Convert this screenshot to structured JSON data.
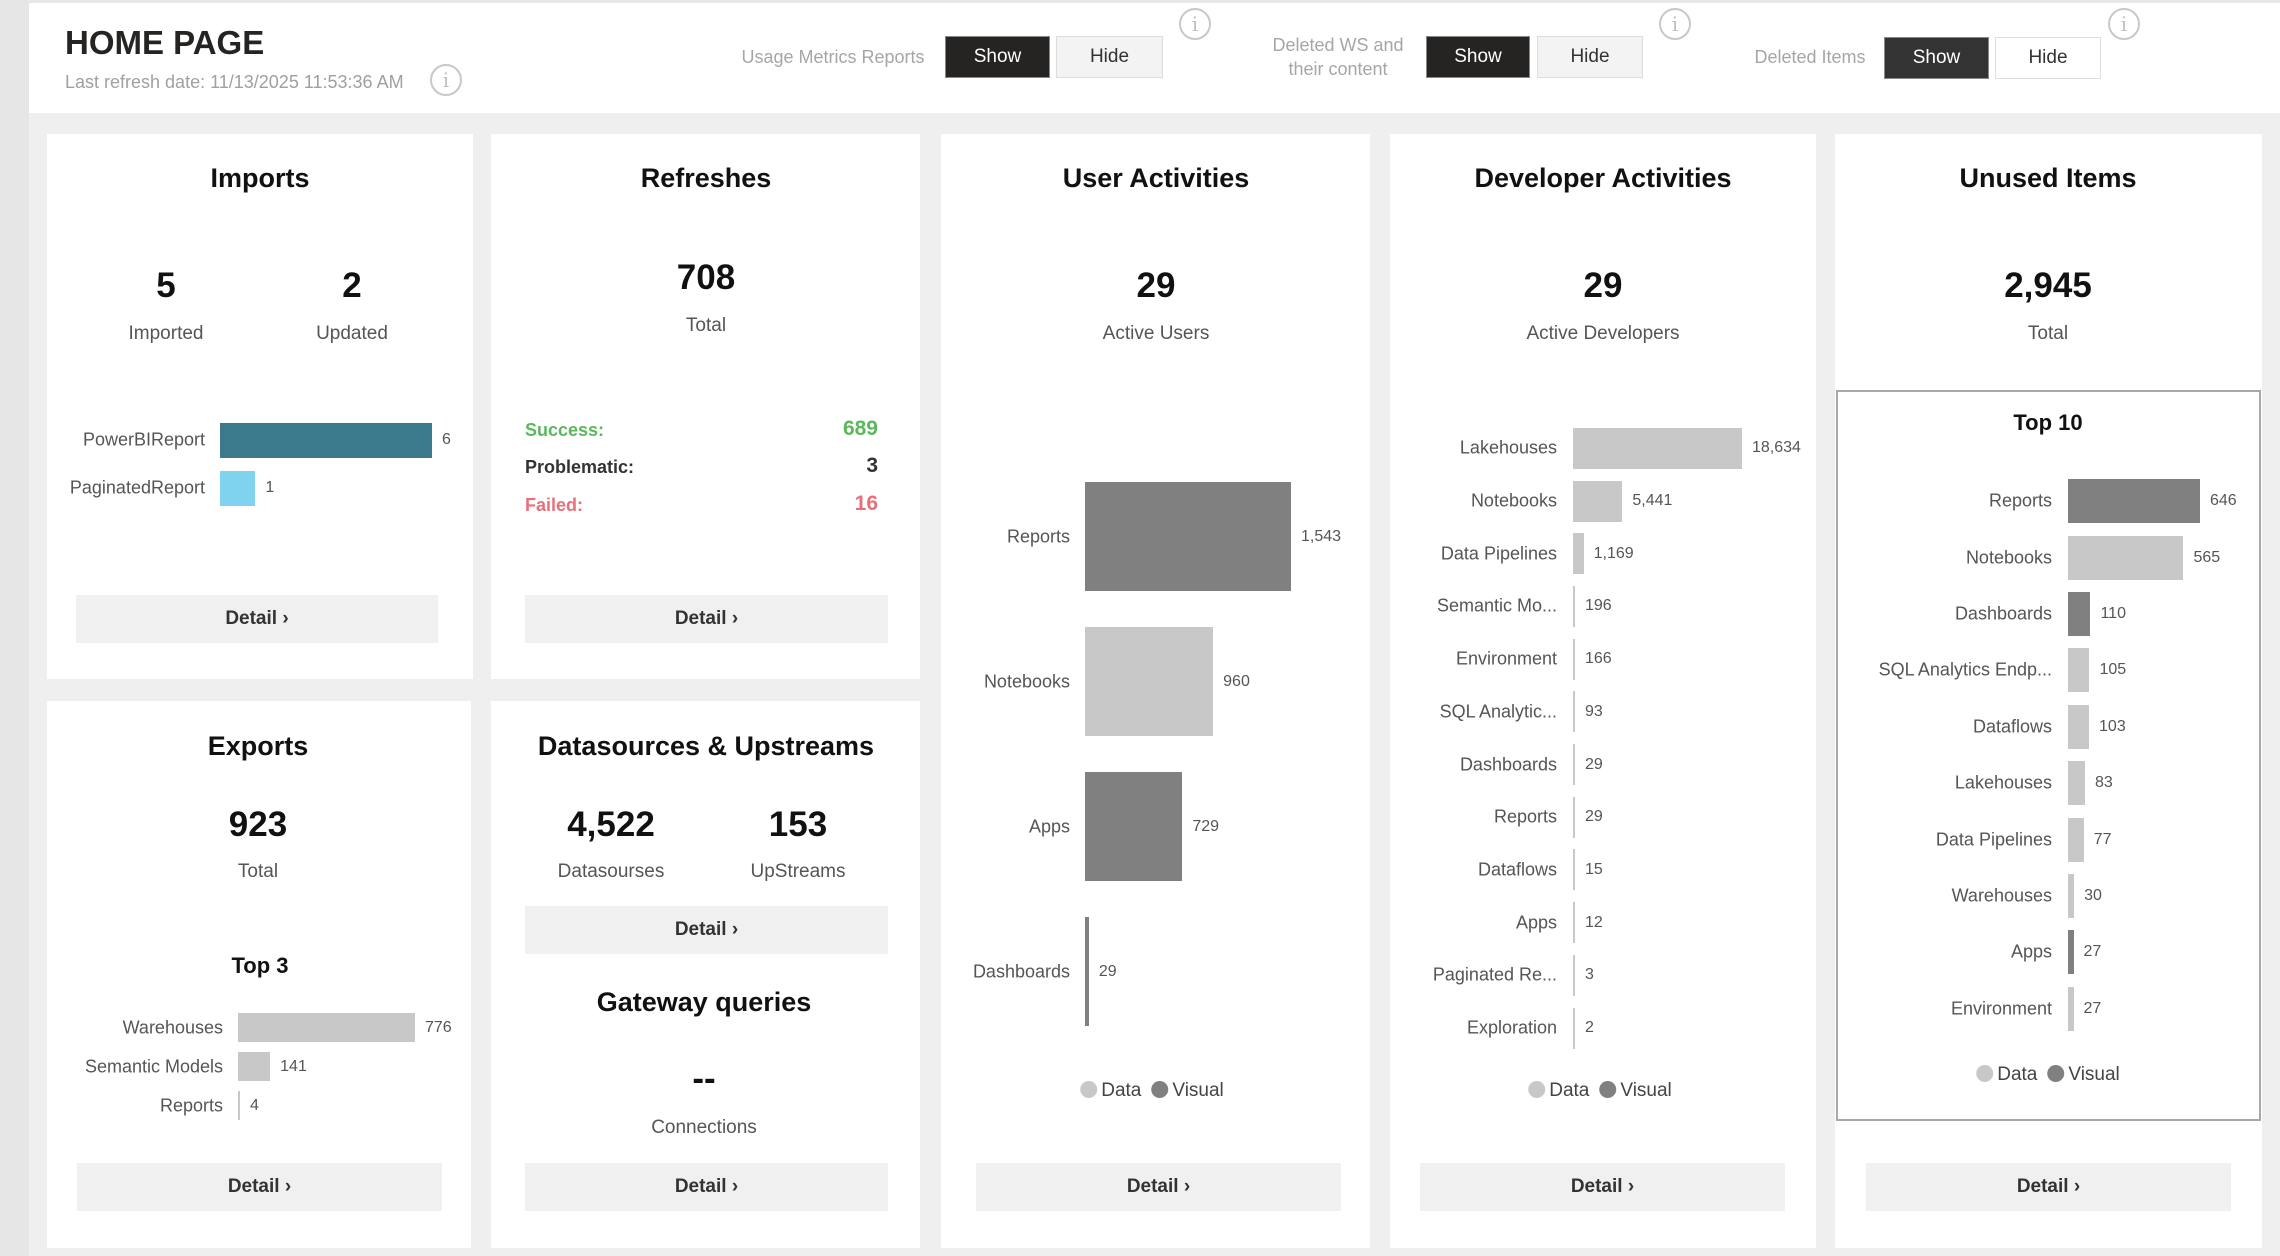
{
  "header": {
    "title": "HOME PAGE",
    "refresh": "Last refresh date: 11/13/2025 11:53:36 AM",
    "toggles": [
      {
        "label": "Usage Metrics Reports",
        "show": "Show",
        "hide": "Hide",
        "selected": "Show"
      },
      {
        "label": "Deleted WS and their content",
        "show": "Show",
        "hide": "Hide",
        "selected": "Show"
      },
      {
        "label": "Deleted Items",
        "show": "Show",
        "hide": "Hide",
        "selected": "Show"
      }
    ]
  },
  "detail_label": "Detail ›",
  "colors": {
    "data": "#c8c8c8",
    "visual": "#808080",
    "success": "#5cb85c",
    "failed": "#e8707a",
    "powerbi": "#3b7a8c",
    "paginated": "#7fd3ef"
  },
  "legend": {
    "data": "Data",
    "visual": "Visual"
  },
  "imports": {
    "title": "Imports",
    "imported": "5",
    "imported_label": "Imported",
    "updated": "2",
    "updated_label": "Updated"
  },
  "refreshes": {
    "title": "Refreshes",
    "total": "708",
    "total_label": "Total",
    "success_label": "Success:",
    "success": "689",
    "problematic_label": "Problematic:",
    "problematic": "3",
    "failed_label": "Failed:",
    "failed": "16"
  },
  "user_activities": {
    "title": "User Activities",
    "value": "29",
    "label": "Active Users"
  },
  "developer_activities": {
    "title": "Developer Activities",
    "value": "29",
    "label": "Active Developers"
  },
  "unused": {
    "title": "Unused Items",
    "value": "2,945",
    "label": "Total",
    "top_title": "Top 10"
  },
  "exports": {
    "title": "Exports",
    "value": "923",
    "label": "Total",
    "top_title": "Top 3"
  },
  "datasources": {
    "title": "Datasources & Upstreams",
    "datasources": "4,522",
    "datasources_label": "Datasourses",
    "upstreams": "153",
    "upstreams_label": "UpStreams",
    "gateway_title": "Gateway queries",
    "gateway_value": "--",
    "gateway_label": "Connections"
  },
  "chart_data": [
    {
      "id": "imports",
      "type": "bar",
      "orientation": "horizontal",
      "categories": [
        "PowerBIReport",
        "PaginatedReport"
      ],
      "values": [
        6,
        1
      ],
      "colors": [
        "#3b7a8c",
        "#7fd3ef"
      ],
      "labels": [
        "6",
        "1"
      ]
    },
    {
      "id": "exports",
      "type": "bar",
      "orientation": "horizontal",
      "categories": [
        "Warehouses",
        "Semantic Models",
        "Reports"
      ],
      "values": [
        776,
        141,
        4
      ],
      "kind": [
        "data",
        "data",
        "data"
      ],
      "labels": [
        "776",
        "141",
        "4"
      ]
    },
    {
      "id": "user",
      "type": "bar",
      "orientation": "horizontal",
      "categories": [
        "Reports",
        "Notebooks",
        "Apps",
        "Dashboards"
      ],
      "values": [
        1543,
        960,
        729,
        29
      ],
      "kind": [
        "visual",
        "data",
        "visual",
        "visual"
      ],
      "labels": [
        "1,543",
        "960",
        "729",
        "29"
      ]
    },
    {
      "id": "dev",
      "type": "bar",
      "orientation": "horizontal",
      "categories": [
        "Lakehouses",
        "Notebooks",
        "Data Pipelines",
        "Semantic Mo...",
        "Environment",
        "SQL Analytic...",
        "Dashboards",
        "Reports",
        "Dataflows",
        "Apps",
        "Paginated Re...",
        "Exploration"
      ],
      "values": [
        18634,
        5441,
        1169,
        196,
        166,
        93,
        29,
        29,
        15,
        12,
        3,
        2
      ],
      "kind": [
        "data",
        "data",
        "data",
        "data",
        "data",
        "data",
        "data",
        "data",
        "data",
        "data",
        "data",
        "data"
      ],
      "labels": [
        "18,634",
        "5,441",
        "1,169",
        "196",
        "166",
        "93",
        "29",
        "29",
        "15",
        "12",
        "3",
        "2"
      ]
    },
    {
      "id": "unused",
      "type": "bar",
      "orientation": "horizontal",
      "categories": [
        "Reports",
        "Notebooks",
        "Dashboards",
        "SQL Analytics Endp...",
        "Dataflows",
        "Lakehouses",
        "Data Pipelines",
        "Warehouses",
        "Apps",
        "Environment"
      ],
      "values": [
        646,
        565,
        110,
        105,
        103,
        83,
        77,
        30,
        27,
        27
      ],
      "kind": [
        "visual",
        "data",
        "visual",
        "data",
        "data",
        "data",
        "data",
        "data",
        "visual",
        "data"
      ],
      "labels": [
        "646",
        "565",
        "110",
        "105",
        "103",
        "83",
        "77",
        "30",
        "27",
        "27"
      ]
    }
  ]
}
